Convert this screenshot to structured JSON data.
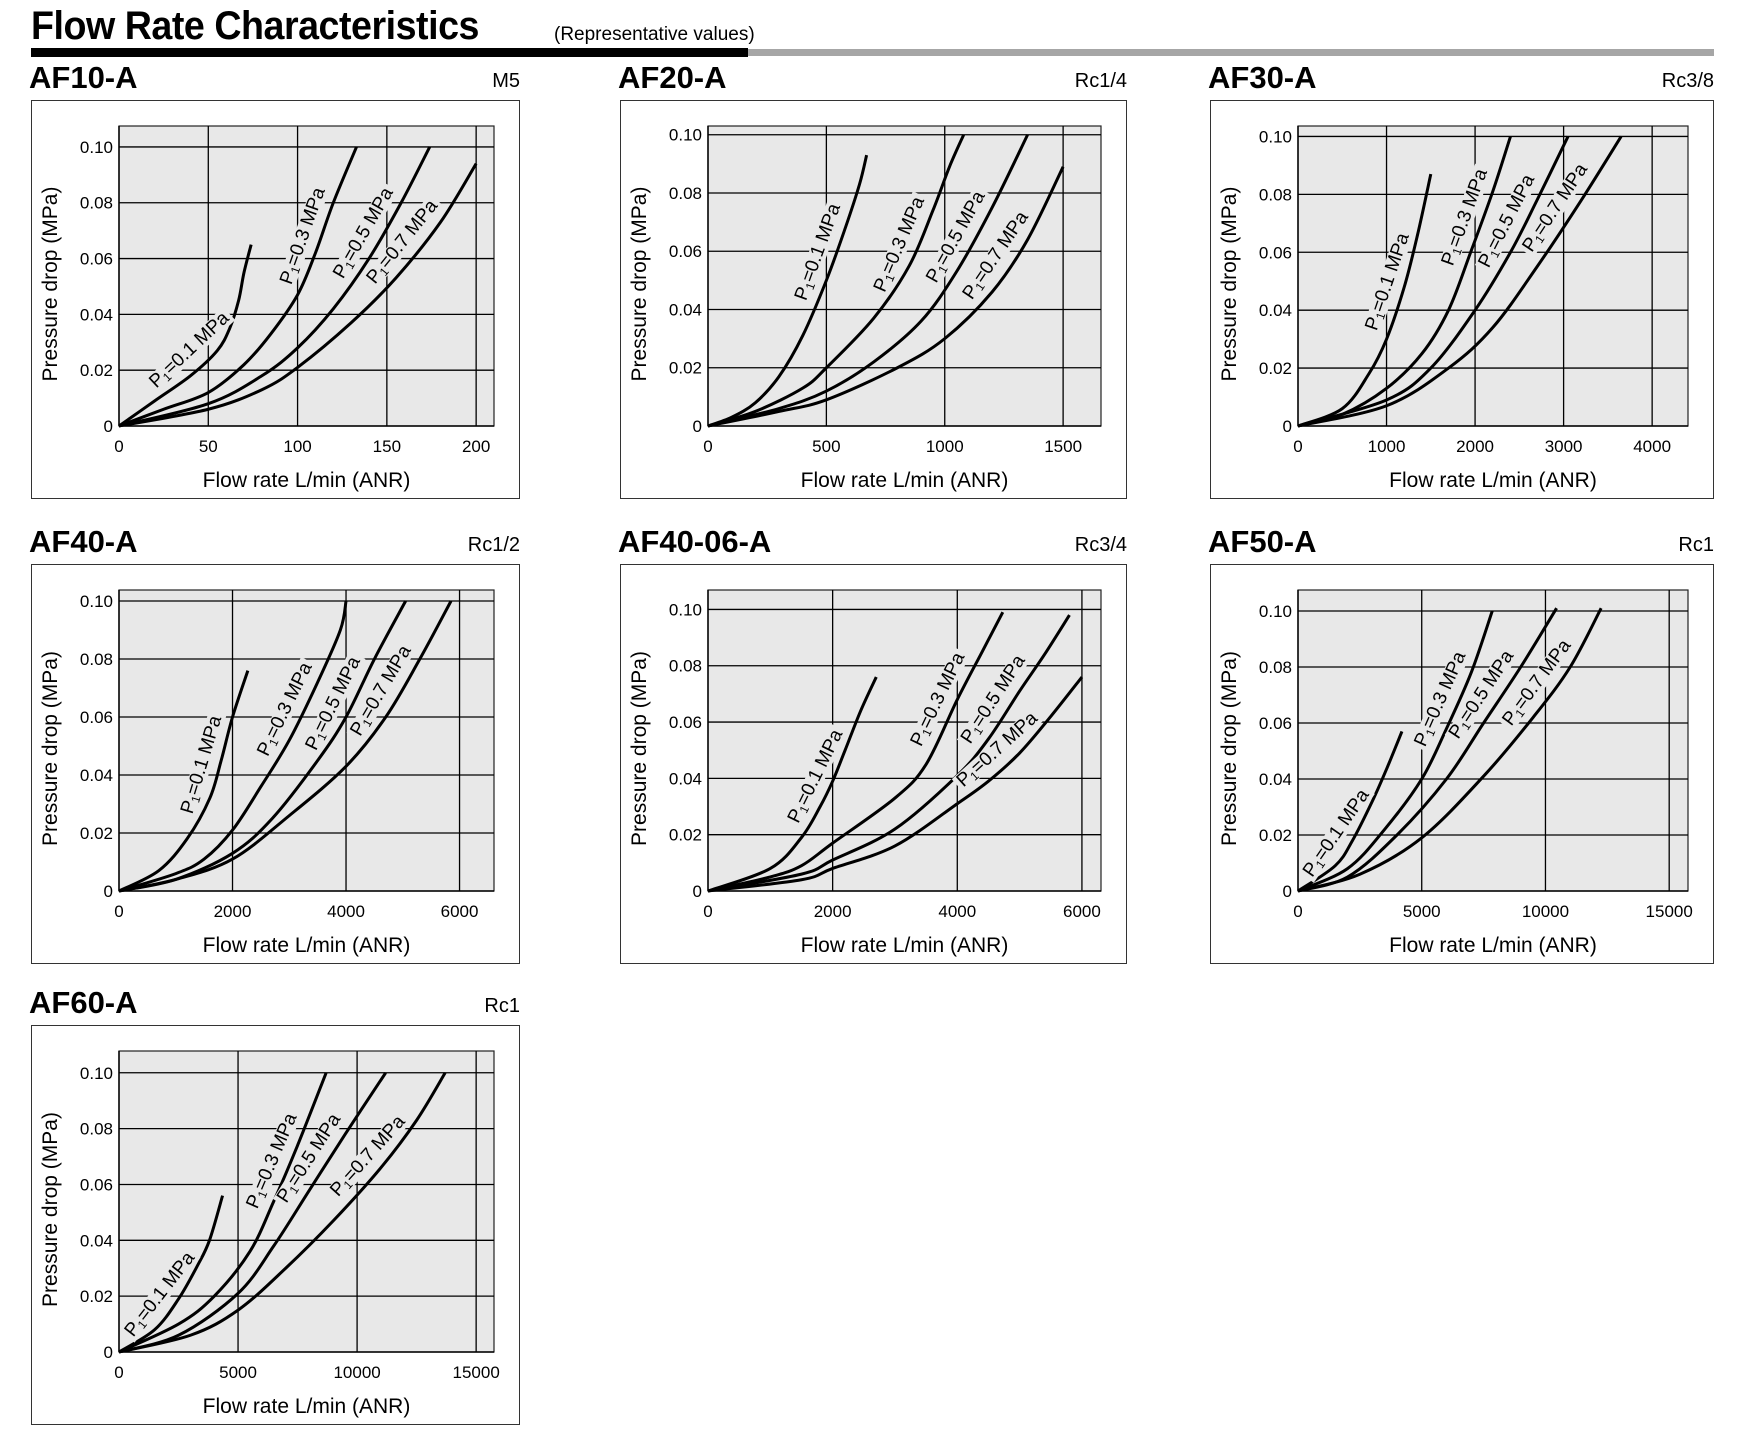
{
  "header": {
    "title": "Flow Rate Characteristics",
    "subtitle": "(Representative values)"
  },
  "colors": {
    "plot_background": "#e8e8e8",
    "grid": "#000000",
    "curve": "#000000",
    "title_bar_black": "#000000",
    "title_bar_gray": "#a6a6a6"
  },
  "chart_data": [
    {
      "type": "line",
      "title": "AF10-A",
      "port_size": "M5",
      "xlabel": "Flow rate L/min (ANR)",
      "ylabel": "Pressure drop (MPa)",
      "xlim": [
        0,
        210
      ],
      "ylim": [
        0,
        0.1075
      ],
      "xticks": [
        0,
        50,
        100,
        150,
        200
      ],
      "xtick_labels": [
        "0",
        "50",
        "100",
        "150",
        "200"
      ],
      "yticks": [
        0,
        0.02,
        0.04,
        0.06,
        0.08,
        0.1
      ],
      "ytick_labels": [
        "0",
        "0.02",
        "0.04",
        "0.06",
        "0.08",
        "0.10"
      ],
      "grid": true,
      "series": [
        {
          "name": "P1=0.1 MPa",
          "label_prefix": "P",
          "label_sub": "1",
          "label_rest": "=0.1 MPa",
          "x": [
            0,
            20,
            40,
            55,
            62,
            67,
            70,
            74
          ],
          "y": [
            0,
            0.009,
            0.018,
            0.027,
            0.035,
            0.045,
            0.055,
            0.065
          ]
        },
        {
          "name": "P1=0.3 MPa",
          "label_prefix": "P",
          "label_sub": "1",
          "label_rest": "=0.3 MPa",
          "x": [
            0,
            25,
            50,
            70,
            85,
            100,
            110,
            120,
            133
          ],
          "y": [
            0,
            0.006,
            0.012,
            0.022,
            0.033,
            0.047,
            0.062,
            0.08,
            0.1
          ]
        },
        {
          "name": "P1=0.5 MPa",
          "label_prefix": "P",
          "label_sub": "1",
          "label_rest": "=0.5 MPa",
          "x": [
            0,
            50,
            80,
            100,
            120,
            140,
            158,
            174
          ],
          "y": [
            0,
            0.008,
            0.018,
            0.028,
            0.042,
            0.06,
            0.08,
            0.1
          ]
        },
        {
          "name": "P1=0.7 MPa",
          "label_prefix": "P",
          "label_sub": "1",
          "label_rest": "=0.7 MPa",
          "x": [
            0,
            50,
            80,
            100,
            130,
            155,
            180,
            200
          ],
          "y": [
            0,
            0.006,
            0.013,
            0.021,
            0.037,
            0.053,
            0.073,
            0.094
          ]
        }
      ]
    },
    {
      "type": "line",
      "title": "AF20-A",
      "port_size": "Rc1/4",
      "xlabel": "Flow rate L/min (ANR)",
      "ylabel": "Pressure drop (MPa)",
      "xlim": [
        0,
        1660
      ],
      "ylim": [
        0,
        0.103
      ],
      "xticks": [
        0,
        500,
        1000,
        1500
      ],
      "xtick_labels": [
        "0",
        "500",
        "1000",
        "1500"
      ],
      "yticks": [
        0,
        0.02,
        0.04,
        0.06,
        0.08,
        0.1
      ],
      "ytick_labels": [
        "0",
        "0.02",
        "0.04",
        "0.06",
        "0.08",
        "0.10"
      ],
      "grid": true,
      "series": [
        {
          "name": "P1=0.1 MPa",
          "label_prefix": "P",
          "label_sub": "1",
          "label_rest": "=0.1 MPa",
          "x": [
            0,
            100,
            200,
            300,
            400,
            500,
            580,
            640,
            670
          ],
          "y": [
            0,
            0.003,
            0.008,
            0.017,
            0.031,
            0.05,
            0.068,
            0.083,
            0.093
          ]
        },
        {
          "name": "P1=0.3 MPa",
          "label_prefix": "P",
          "label_sub": "1",
          "label_rest": "=0.3 MPa",
          "x": [
            0,
            200,
            400,
            500,
            700,
            850,
            950,
            1020,
            1080
          ],
          "y": [
            0,
            0.005,
            0.013,
            0.02,
            0.037,
            0.055,
            0.074,
            0.089,
            0.1
          ]
        },
        {
          "name": "P1=0.5 MPa",
          "label_prefix": "P",
          "label_sub": "1",
          "label_rest": "=0.5 MPa",
          "x": [
            0,
            300,
            500,
            700,
            900,
            1050,
            1200,
            1350
          ],
          "y": [
            0,
            0.006,
            0.012,
            0.022,
            0.036,
            0.053,
            0.075,
            0.1
          ]
        },
        {
          "name": "P1=0.7 MPa",
          "label_prefix": "P",
          "label_sub": "1",
          "label_rest": "=0.7 MPa",
          "x": [
            0,
            300,
            500,
            800,
            1000,
            1200,
            1350,
            1500
          ],
          "y": [
            0,
            0.005,
            0.009,
            0.02,
            0.03,
            0.046,
            0.064,
            0.089
          ]
        }
      ]
    },
    {
      "type": "line",
      "title": "AF30-A",
      "port_size": "Rc3/8",
      "xlabel": "Flow rate L/min (ANR)",
      "ylabel": "Pressure drop (MPa)",
      "xlim": [
        0,
        4405
      ],
      "ylim": [
        0,
        0.1036
      ],
      "xticks": [
        0,
        1000,
        2000,
        3000,
        4000
      ],
      "xtick_labels": [
        "0",
        "1000",
        "2000",
        "3000",
        "4000"
      ],
      "yticks": [
        0,
        0.02,
        0.04,
        0.06,
        0.08,
        0.1
      ],
      "ytick_labels": [
        "0",
        "0.02",
        "0.04",
        "0.06",
        "0.08",
        "0.10"
      ],
      "grid": true,
      "series": [
        {
          "name": "P1=0.1 MPa",
          "label_prefix": "P",
          "label_sub": "1",
          "label_rest": "=0.1 MPa",
          "x": [
            0,
            500,
            800,
            1000,
            1200,
            1350,
            1500
          ],
          "y": [
            0,
            0.006,
            0.018,
            0.03,
            0.048,
            0.066,
            0.087
          ]
        },
        {
          "name": "P1=0.3 MPa",
          "label_prefix": "P",
          "label_sub": "1",
          "label_rest": "=0.3 MPa",
          "x": [
            0,
            500,
            1000,
            1400,
            1700,
            1950,
            2200,
            2400
          ],
          "y": [
            0,
            0.004,
            0.013,
            0.025,
            0.04,
            0.06,
            0.081,
            0.1
          ]
        },
        {
          "name": "P1=0.5 MPa",
          "label_prefix": "P",
          "label_sub": "1",
          "label_rest": "=0.5 MPa",
          "x": [
            0,
            1000,
            1500,
            2000,
            2400,
            2700,
            3050
          ],
          "y": [
            0,
            0.009,
            0.02,
            0.04,
            0.06,
            0.078,
            0.1
          ]
        },
        {
          "name": "P1=0.7 MPa",
          "label_prefix": "P",
          "label_sub": "1",
          "label_rest": "=0.7 MPa",
          "x": [
            0,
            1000,
            1700,
            2200,
            2700,
            3200,
            3650
          ],
          "y": [
            0,
            0.007,
            0.02,
            0.034,
            0.055,
            0.078,
            0.1
          ]
        }
      ]
    },
    {
      "type": "line",
      "title": "AF40-A",
      "port_size": "Rc1/2",
      "xlabel": "Flow rate L/min (ANR)",
      "ylabel": "Pressure drop (MPa)",
      "xlim": [
        0,
        6607
      ],
      "ylim": [
        0,
        0.1038
      ],
      "xticks": [
        0,
        2000,
        4000,
        6000
      ],
      "xtick_labels": [
        "0",
        "2000",
        "4000",
        "6000"
      ],
      "yticks": [
        0,
        0.02,
        0.04,
        0.06,
        0.08,
        0.1
      ],
      "ytick_labels": [
        "0",
        "0.02",
        "0.04",
        "0.06",
        "0.08",
        "0.10"
      ],
      "grid": true,
      "series": [
        {
          "name": "P1=0.1 MPa",
          "label_prefix": "P",
          "label_sub": "1",
          "label_rest": "=0.1 MPa",
          "x": [
            0,
            700,
            1200,
            1600,
            1800,
            2000,
            2270
          ],
          "y": [
            0,
            0.007,
            0.018,
            0.032,
            0.045,
            0.06,
            0.076
          ]
        },
        {
          "name": "P1=0.3 MPa",
          "label_prefix": "P",
          "label_sub": "1",
          "label_rest": "=0.3 MPa",
          "x": [
            0,
            1000,
            1500,
            2000,
            2500,
            3000,
            3500,
            3900,
            4000
          ],
          "y": [
            0,
            0.006,
            0.011,
            0.021,
            0.036,
            0.052,
            0.072,
            0.09,
            0.1
          ]
        },
        {
          "name": "P1=0.5 MPa",
          "label_prefix": "P",
          "label_sub": "1",
          "label_rest": "=0.5 MPa",
          "x": [
            0,
            1000,
            2000,
            2700,
            3500,
            4000,
            4500,
            5050
          ],
          "y": [
            0,
            0.004,
            0.013,
            0.025,
            0.045,
            0.06,
            0.08,
            0.1
          ]
        },
        {
          "name": "P1=0.7 MPa",
          "label_prefix": "P",
          "label_sub": "1",
          "label_rest": "=0.7 MPa",
          "x": [
            0,
            1000,
            2000,
            3000,
            4000,
            4700,
            5300,
            5850
          ],
          "y": [
            0,
            0.004,
            0.011,
            0.026,
            0.043,
            0.06,
            0.08,
            0.1
          ]
        }
      ]
    },
    {
      "type": "line",
      "title": "AF40-06-A",
      "port_size": "Rc3/4",
      "xlabel": "Flow rate L/min (ANR)",
      "ylabel": "Pressure drop (MPa)",
      "xlim": [
        0,
        6306
      ],
      "ylim": [
        0,
        0.1069
      ],
      "xticks": [
        0,
        2000,
        4000,
        6000
      ],
      "xtick_labels": [
        "0",
        "2000",
        "4000",
        "6000"
      ],
      "yticks": [
        0,
        0.02,
        0.04,
        0.06,
        0.08,
        0.1
      ],
      "ytick_labels": [
        "0",
        "0.02",
        "0.04",
        "0.06",
        "0.08",
        "0.10"
      ],
      "grid": true,
      "series": [
        {
          "name": "P1=0.1 MPa",
          "label_prefix": "P",
          "label_sub": "1",
          "label_rest": "=0.1 MPa",
          "x": [
            0,
            1000,
            1500,
            1800,
            2000,
            2200,
            2450,
            2700
          ],
          "y": [
            0,
            0.008,
            0.019,
            0.03,
            0.039,
            0.05,
            0.064,
            0.076
          ]
        },
        {
          "name": "P1=0.3 MPa",
          "label_prefix": "P",
          "label_sub": "1",
          "label_rest": "=0.3 MPa",
          "x": [
            0,
            1000,
            1500,
            2000,
            3000,
            3500,
            4000,
            4400,
            4730
          ],
          "y": [
            0,
            0.005,
            0.009,
            0.017,
            0.033,
            0.045,
            0.068,
            0.085,
            0.099
          ]
        },
        {
          "name": "P1=0.5 MPa",
          "label_prefix": "P",
          "label_sub": "1",
          "label_rest": "=0.5 MPa",
          "x": [
            0,
            1500,
            2000,
            3000,
            4000,
            4500,
            5000,
            5400,
            5800
          ],
          "y": [
            0,
            0.006,
            0.011,
            0.022,
            0.041,
            0.054,
            0.071,
            0.084,
            0.098
          ]
        },
        {
          "name": "P1=0.7 MPa",
          "label_prefix": "P",
          "label_sub": "1",
          "label_rest": "=0.7 MPa",
          "x": [
            0,
            1500,
            2000,
            3000,
            4000,
            4500,
            5000,
            5500,
            6000
          ],
          "y": [
            0,
            0.004,
            0.008,
            0.016,
            0.031,
            0.039,
            0.049,
            0.062,
            0.076
          ]
        }
      ]
    },
    {
      "type": "line",
      "title": "AF50-A",
      "port_size": "Rc1",
      "xlabel": "Flow rate L/min (ANR)",
      "ylabel": "Pressure drop (MPa)",
      "xlim": [
        0,
        15760
      ],
      "ylim": [
        0,
        0.1075
      ],
      "xticks": [
        0,
        5000,
        10000,
        15000
      ],
      "xtick_labels": [
        "0",
        "5000",
        "10000",
        "15000"
      ],
      "yticks": [
        0,
        0.02,
        0.04,
        0.06,
        0.08,
        0.1
      ],
      "ytick_labels": [
        "0",
        "0.02",
        "0.04",
        "0.06",
        "0.08",
        "0.10"
      ],
      "grid": true,
      "series": [
        {
          "name": "P1=0.1 MPa",
          "label_prefix": "P",
          "label_sub": "1",
          "label_rest": "=0.1 MPa",
          "x": [
            0,
            1500,
            2200,
            3000,
            3600,
            4200
          ],
          "y": [
            0,
            0.009,
            0.018,
            0.032,
            0.044,
            0.057
          ]
        },
        {
          "name": "P1=0.3 MPa",
          "label_prefix": "P",
          "label_sub": "1",
          "label_rest": "=0.3 MPa",
          "x": [
            0,
            2000,
            3500,
            5000,
            6000,
            7000,
            7850
          ],
          "y": [
            0,
            0.008,
            0.022,
            0.04,
            0.058,
            0.078,
            0.1
          ]
        },
        {
          "name": "P1=0.5 MPa",
          "label_prefix": "P",
          "label_sub": "1",
          "label_rest": "=0.5 MPa",
          "x": [
            0,
            2000,
            4000,
            6000,
            7500,
            9000,
            10450
          ],
          "y": [
            0,
            0.005,
            0.02,
            0.04,
            0.06,
            0.08,
            0.101
          ]
        },
        {
          "name": "P1=0.7 MPa",
          "label_prefix": "P",
          "label_sub": "1",
          "label_rest": "=0.7 MPa",
          "x": [
            0,
            2500,
            5000,
            7500,
            9500,
            11000,
            12250
          ],
          "y": [
            0,
            0.006,
            0.019,
            0.041,
            0.062,
            0.08,
            0.101
          ]
        }
      ]
    },
    {
      "type": "line",
      "title": "AF60-A",
      "port_size": "Rc1",
      "xlabel": "Flow rate L/min (ANR)",
      "ylabel": "Pressure drop (MPa)",
      "xlim": [
        0,
        15750
      ],
      "ylim": [
        0,
        0.1078
      ],
      "xticks": [
        0,
        5000,
        10000,
        15000
      ],
      "xtick_labels": [
        "0",
        "5000",
        "10000",
        "15000"
      ],
      "yticks": [
        0,
        0.02,
        0.04,
        0.06,
        0.08,
        0.1
      ],
      "ytick_labels": [
        "0",
        "0.02",
        "0.04",
        "0.06",
        "0.08",
        "0.10"
      ],
      "grid": true,
      "series": [
        {
          "name": "P1=0.1 MPa",
          "label_prefix": "P",
          "label_sub": "1",
          "label_rest": "=0.1 MPa",
          "x": [
            0,
            1500,
            2500,
            3300,
            3800,
            4350
          ],
          "y": [
            0,
            0.008,
            0.019,
            0.031,
            0.04,
            0.056
          ]
        },
        {
          "name": "P1=0.3 MPa",
          "label_prefix": "P",
          "label_sub": "1",
          "label_rest": "=0.3 MPa",
          "x": [
            0,
            2500,
            4000,
            5500,
            6500,
            7500,
            8700
          ],
          "y": [
            0,
            0.01,
            0.02,
            0.036,
            0.054,
            0.074,
            0.1
          ]
        },
        {
          "name": "P1=0.5 MPa",
          "label_prefix": "P",
          "label_sub": "1",
          "label_rest": "=0.5 MPa",
          "x": [
            0,
            2500,
            5000,
            6500,
            8000,
            9500,
            11200
          ],
          "y": [
            0,
            0.006,
            0.021,
            0.038,
            0.058,
            0.078,
            0.1
          ]
        },
        {
          "name": "P1=0.7 MPa",
          "label_prefix": "P",
          "label_sub": "1",
          "label_rest": "=0.7 MPa",
          "x": [
            0,
            3000,
            5000,
            7000,
            9000,
            11000,
            12500,
            13700
          ],
          "y": [
            0,
            0.006,
            0.015,
            0.03,
            0.047,
            0.066,
            0.083,
            0.1
          ]
        }
      ]
    }
  ]
}
